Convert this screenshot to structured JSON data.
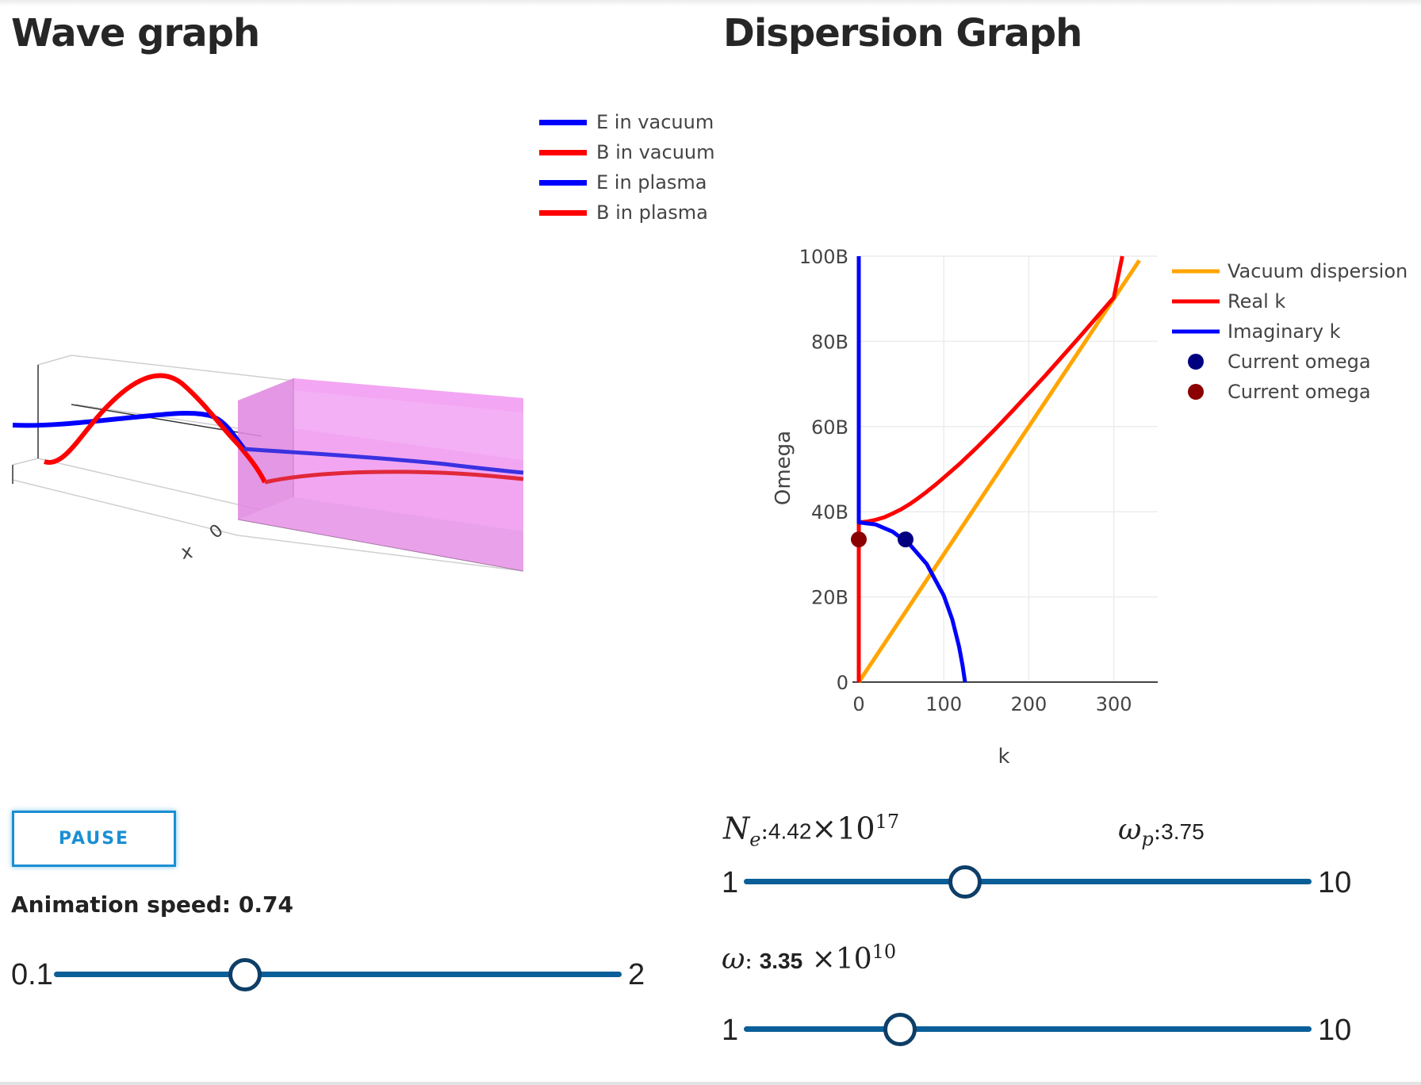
{
  "wave_panel": {
    "title": "Wave graph",
    "legend": [
      {
        "label": "E in vacuum",
        "color": "#0000ff"
      },
      {
        "label": "B in vacuum",
        "color": "#ff0000"
      },
      {
        "label": "E in plasma",
        "color": "#0000ff"
      },
      {
        "label": "B in plasma",
        "color": "#ff0000"
      }
    ],
    "axis_x_label": "x",
    "axis_zero_label": "0",
    "plasma_color": "#ee88ee"
  },
  "dispersion_panel": {
    "title": "Dispersion Graph",
    "chart_data": {
      "type": "line",
      "xlabel": "k",
      "ylabel": "Omega",
      "xlim": [
        0,
        350
      ],
      "ylim": [
        0,
        100000000000
      ],
      "x_ticks": [
        "0",
        "100",
        "200",
        "300"
      ],
      "y_ticks": [
        "0",
        "20B",
        "40B",
        "60B",
        "80B",
        "100B"
      ],
      "grid": true,
      "legend_position": "right",
      "series": [
        {
          "name": "Vacuum dispersion",
          "color": "#ffa500",
          "x": [
            0,
            330
          ],
          "y": [
            0,
            99000000000
          ]
        },
        {
          "name": "Real k",
          "color": "#ff0000",
          "x": [
            0,
            0,
            10,
            20,
            30,
            40,
            50,
            60,
            70,
            80,
            90,
            100,
            120,
            140,
            160,
            180,
            200,
            220,
            240,
            260,
            280,
            300,
            310
          ],
          "y": [
            0,
            37500000000,
            37700000000,
            38100000000,
            38700000000,
            39600000000,
            40600000000,
            41800000000,
            43200000000,
            44700000000,
            46300000000,
            48000000000,
            51500000000,
            55300000000,
            59300000000,
            63500000000,
            67800000000,
            72100000000,
            76600000000,
            81100000000,
            85700000000,
            90300000000,
            100000000000
          ]
        },
        {
          "name": "Imaginary k",
          "color": "#0000ff",
          "x": [
            0,
            0,
            0,
            20,
            40,
            60,
            80,
            100,
            110,
            118,
            122,
            125
          ],
          "y": [
            100000000000,
            37500000000,
            37500000000,
            37000000000,
            35300000000,
            32300000000,
            27700000000,
            20300000000,
            14700000000,
            8300000000,
            4000000000,
            0
          ]
        },
        {
          "name": "Current omega",
          "color": "#000080",
          "marker": true,
          "x": [
            55
          ],
          "y": [
            33500000000
          ]
        },
        {
          "name": "Current omega",
          "color": "#8b0000",
          "marker": true,
          "x": [
            0
          ],
          "y": [
            33500000000
          ]
        }
      ]
    }
  },
  "controls": {
    "pause_label": "PAUSE",
    "speed": {
      "label_prefix": "Animation speed: ",
      "value": "0.74",
      "min": "0.1",
      "max": "2",
      "fraction": 0.336
    },
    "ne": {
      "symbol": "N",
      "subscript": "e",
      "value": "4.42",
      "times": "×10",
      "exponent": "17",
      "min": "1",
      "max": "10",
      "fraction": 0.389
    },
    "wp": {
      "symbol": "ω",
      "subscript": "p",
      "value": "3.75"
    },
    "omega": {
      "symbol": "ω",
      "value": "3.35",
      "times": "×10",
      "exponent": "10",
      "min": "1",
      "max": "10",
      "fraction": 0.275
    }
  }
}
